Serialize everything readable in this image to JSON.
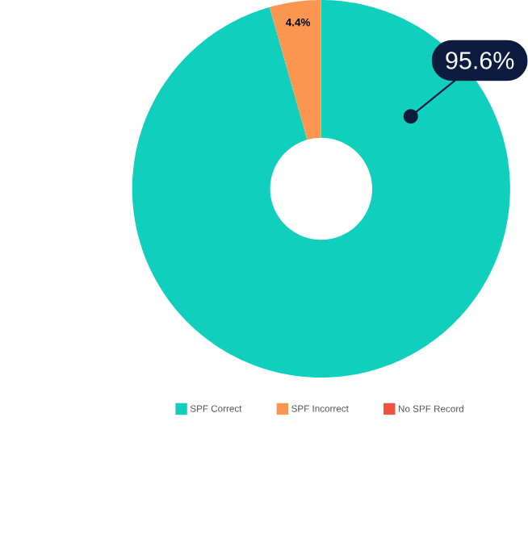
{
  "chart_data": {
    "type": "donut",
    "categories": [
      "SPF Correct",
      "SPF Incorrect",
      "No SPF Record"
    ],
    "values": [
      95.6,
      4.4,
      0
    ],
    "colors": [
      "#10cfbd",
      "#fb9650",
      "#ee5340"
    ],
    "value_labels": [
      "95.6%",
      "4.4%",
      null
    ],
    "legend": "bottom"
  }
}
